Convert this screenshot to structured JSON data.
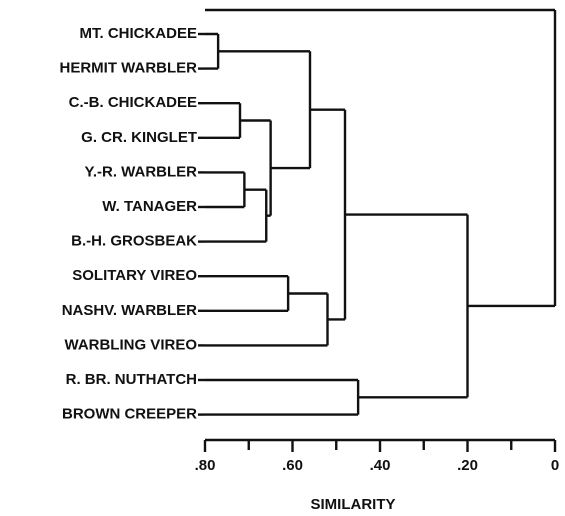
{
  "chart_data": {
    "type": "dendrogram",
    "xlabel": "SIMILARITY",
    "xlim": [
      0.8,
      0
    ],
    "xticks": [
      {
        "value": 0.8,
        "label": ".80"
      },
      {
        "value": 0.6,
        "label": ".60"
      },
      {
        "value": 0.4,
        "label": ".40"
      },
      {
        "value": 0.2,
        "label": ".20"
      },
      0
    ],
    "xminorticks": [
      0.7,
      0.5,
      0.3,
      0.1
    ],
    "tree": {
      "height": 0.2,
      "children": [
        {
          "height": 0.48,
          "children": [
            {
              "height": 0.56,
              "children": [
                {
                  "height": 0.77,
                  "children": [
                    {
                      "label": "MT. CHICKADEE"
                    },
                    {
                      "label": "HERMIT WARBLER"
                    }
                  ]
                },
                {
                  "height": 0.65,
                  "children": [
                    {
                      "height": 0.72,
                      "children": [
                        {
                          "label": "C.-B. CHICKADEE"
                        },
                        {
                          "label": "G. CR. KINGLET"
                        }
                      ]
                    },
                    {
                      "height": 0.66,
                      "children": [
                        {
                          "height": 0.71,
                          "children": [
                            {
                              "label": "Y.-R. WARBLER"
                            },
                            {
                              "label": "W. TANAGER"
                            }
                          ]
                        },
                        {
                          "label": "B.-H. GROSBEAK"
                        }
                      ]
                    }
                  ]
                }
              ]
            },
            {
              "height": 0.52,
              "children": [
                {
                  "height": 0.61,
                  "children": [
                    {
                      "label": "SOLITARY VIREO"
                    },
                    {
                      "label": "NASHV. WARBLER"
                    }
                  ]
                },
                {
                  "label": "WARBLING VIREO"
                }
              ]
            }
          ]
        },
        {
          "height": 0.45,
          "children": [
            {
              "label": "R. BR. NUTHATCH"
            },
            {
              "label": "BROWN CREEPER"
            }
          ]
        }
      ]
    }
  }
}
